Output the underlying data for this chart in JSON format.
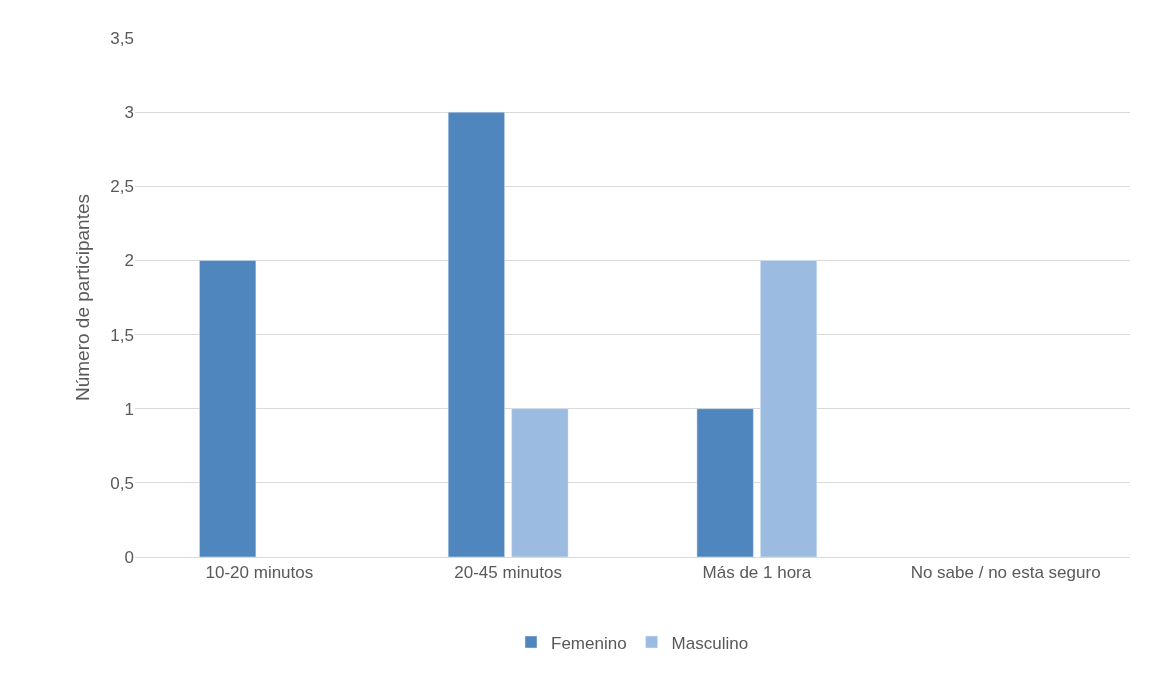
{
  "chart_data": {
    "type": "bar",
    "ylabel": "Número de participantes",
    "categories": [
      "10-20 minutos",
      "20-45 minutos",
      "Más de 1 hora",
      "No sabe / no esta seguro"
    ],
    "series": [
      {
        "name": "Femenino",
        "color": "#4f86bd",
        "values": [
          2,
          3,
          1,
          null
        ]
      },
      {
        "name": "Masculino",
        "color": "#9bbbe0",
        "values": [
          null,
          1,
          2,
          null
        ]
      }
    ],
    "ylim": [
      0,
      3.5
    ],
    "yticks": [
      0,
      {
        "value": 0.5,
        "label": "0,5"
      },
      1,
      {
        "value": 1.5,
        "label": "1,5"
      },
      2,
      {
        "value": 2.5,
        "label": "2,5"
      },
      3,
      {
        "value": 3.5,
        "label": "3,5"
      }
    ],
    "grid": "y",
    "legend": "bottom"
  }
}
